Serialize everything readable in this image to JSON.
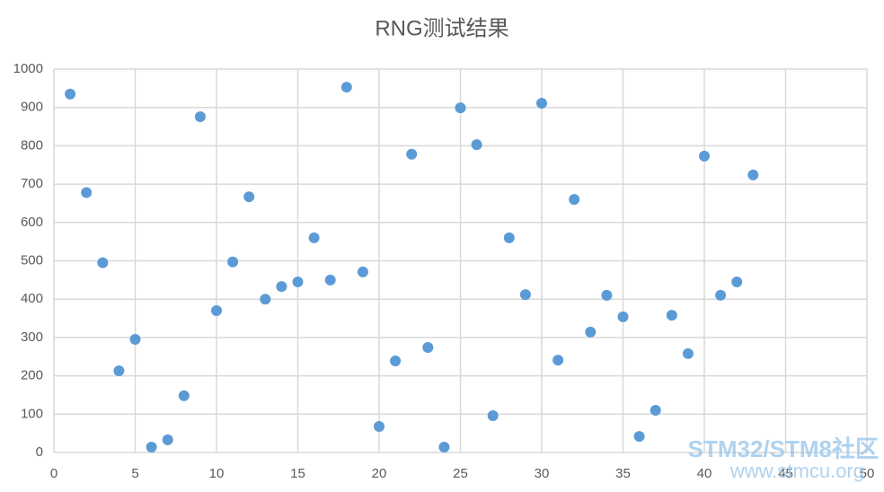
{
  "chart_data": {
    "type": "scatter",
    "title": "RNG测试结果",
    "x": [
      1,
      2,
      3,
      4,
      5,
      6,
      7,
      8,
      9,
      10,
      11,
      12,
      13,
      14,
      15,
      16,
      17,
      18,
      19,
      20,
      21,
      22,
      23,
      24,
      25,
      26,
      27,
      28,
      29,
      30,
      31,
      32,
      33,
      34,
      35,
      36,
      37,
      38,
      39,
      40,
      41,
      42,
      43
    ],
    "series": [
      {
        "color": "#5b9bd5",
        "values": [
          935,
          678,
          495,
          213,
          295,
          14,
          33,
          148,
          876,
          370,
          497,
          667,
          400,
          433,
          445,
          560,
          450,
          953,
          471,
          68,
          239,
          778,
          274,
          14,
          899,
          803,
          96,
          560,
          412,
          911,
          241,
          660,
          314,
          410,
          354,
          42,
          110,
          358,
          258,
          773,
          410,
          445,
          724
        ]
      }
    ],
    "xlim": [
      0,
      50
    ],
    "xticks": [
      0,
      5,
      10,
      15,
      20,
      25,
      30,
      35,
      40,
      45,
      50
    ],
    "ylim": [
      0,
      1000
    ],
    "yticks": [
      0,
      100,
      200,
      300,
      400,
      500,
      600,
      700,
      800,
      900,
      1000
    ],
    "grid": true,
    "watermark": [
      "STM32/STM8社区",
      "www.stmcu.org"
    ]
  }
}
